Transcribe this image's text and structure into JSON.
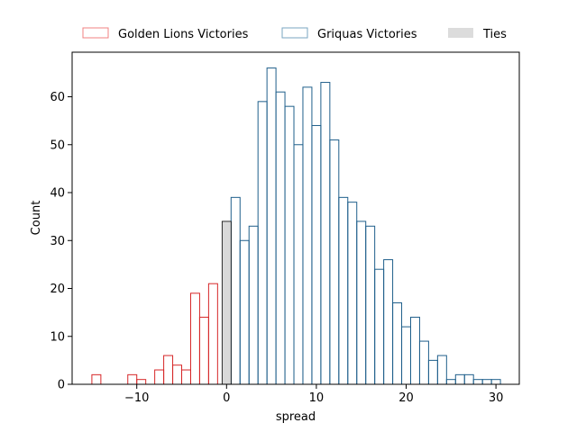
{
  "chart_data": {
    "type": "bar",
    "xlabel": "spread",
    "ylabel": "Count",
    "xlim": [
      -17.2,
      32.6
    ],
    "ylim": [
      0,
      69.3
    ],
    "bin_width": 1,
    "x_ticks": [
      -10,
      0,
      10,
      20,
      30
    ],
    "x_tick_labels": [
      "−10",
      "0",
      "10",
      "20",
      "30"
    ],
    "y_ticks": [
      0,
      10,
      20,
      30,
      40,
      50,
      60
    ],
    "y_tick_labels": [
      "0",
      "10",
      "20",
      "30",
      "40",
      "50",
      "60"
    ],
    "legend_position": "top-center",
    "series": [
      {
        "name": "Golden Lions Victories",
        "style": "step",
        "color": "#d62728",
        "bins": [
          {
            "x0": -15,
            "x1": -14,
            "count": 2
          },
          {
            "x0": -14,
            "x1": -13,
            "count": 0
          },
          {
            "x0": -13,
            "x1": -12,
            "count": 0
          },
          {
            "x0": -12,
            "x1": -11,
            "count": 0
          },
          {
            "x0": -11,
            "x1": -10,
            "count": 2
          },
          {
            "x0": -10,
            "x1": -9,
            "count": 1
          },
          {
            "x0": -9,
            "x1": -8,
            "count": 0
          },
          {
            "x0": -8,
            "x1": -7,
            "count": 3
          },
          {
            "x0": -7,
            "x1": -6,
            "count": 6
          },
          {
            "x0": -6,
            "x1": -5,
            "count": 4
          },
          {
            "x0": -5,
            "x1": -4,
            "count": 3
          },
          {
            "x0": -4,
            "x1": -3,
            "count": 19
          },
          {
            "x0": -3,
            "x1": -2,
            "count": 14
          },
          {
            "x0": -2,
            "x1": -1,
            "count": 21
          }
        ]
      },
      {
        "name": "Griquas Victories",
        "style": "step",
        "color": "#1f5f8b",
        "bins": [
          {
            "x0": 0.5,
            "x1": 1.5,
            "count": 39
          },
          {
            "x0": 1.5,
            "x1": 2.5,
            "count": 30
          },
          {
            "x0": 2.5,
            "x1": 3.5,
            "count": 33
          },
          {
            "x0": 3.5,
            "x1": 4.5,
            "count": 59
          },
          {
            "x0": 4.5,
            "x1": 5.5,
            "count": 66
          },
          {
            "x0": 5.5,
            "x1": 6.5,
            "count": 61
          },
          {
            "x0": 6.5,
            "x1": 7.5,
            "count": 58
          },
          {
            "x0": 7.5,
            "x1": 8.5,
            "count": 50
          },
          {
            "x0": 8.5,
            "x1": 9.5,
            "count": 62
          },
          {
            "x0": 9.5,
            "x1": 10.5,
            "count": 54
          },
          {
            "x0": 10.5,
            "x1": 11.5,
            "count": 63
          },
          {
            "x0": 11.5,
            "x1": 12.5,
            "count": 51
          },
          {
            "x0": 12.5,
            "x1": 13.5,
            "count": 39
          },
          {
            "x0": 13.5,
            "x1": 14.5,
            "count": 38
          },
          {
            "x0": 14.5,
            "x1": 15.5,
            "count": 34
          },
          {
            "x0": 15.5,
            "x1": 16.5,
            "count": 33
          },
          {
            "x0": 16.5,
            "x1": 17.5,
            "count": 24
          },
          {
            "x0": 17.5,
            "x1": 18.5,
            "count": 26
          },
          {
            "x0": 18.5,
            "x1": 19.5,
            "count": 17
          },
          {
            "x0": 19.5,
            "x1": 20.5,
            "count": 12
          },
          {
            "x0": 20.5,
            "x1": 21.5,
            "count": 14
          },
          {
            "x0": 21.5,
            "x1": 22.5,
            "count": 9
          },
          {
            "x0": 22.5,
            "x1": 23.5,
            "count": 5
          },
          {
            "x0": 23.5,
            "x1": 24.5,
            "count": 6
          },
          {
            "x0": 24.5,
            "x1": 25.5,
            "count": 1
          },
          {
            "x0": 25.5,
            "x1": 26.5,
            "count": 2
          },
          {
            "x0": 26.5,
            "x1": 27.5,
            "count": 2
          },
          {
            "x0": 27.5,
            "x1": 28.5,
            "count": 1
          },
          {
            "x0": 28.5,
            "x1": 29.5,
            "count": 1
          },
          {
            "x0": 29.5,
            "x1": 30.5,
            "count": 1
          }
        ]
      },
      {
        "name": "Ties",
        "style": "filled",
        "color": "#d9d9d9",
        "bins": [
          {
            "x0": -0.5,
            "x1": 0.5,
            "count": 34
          }
        ]
      }
    ]
  }
}
